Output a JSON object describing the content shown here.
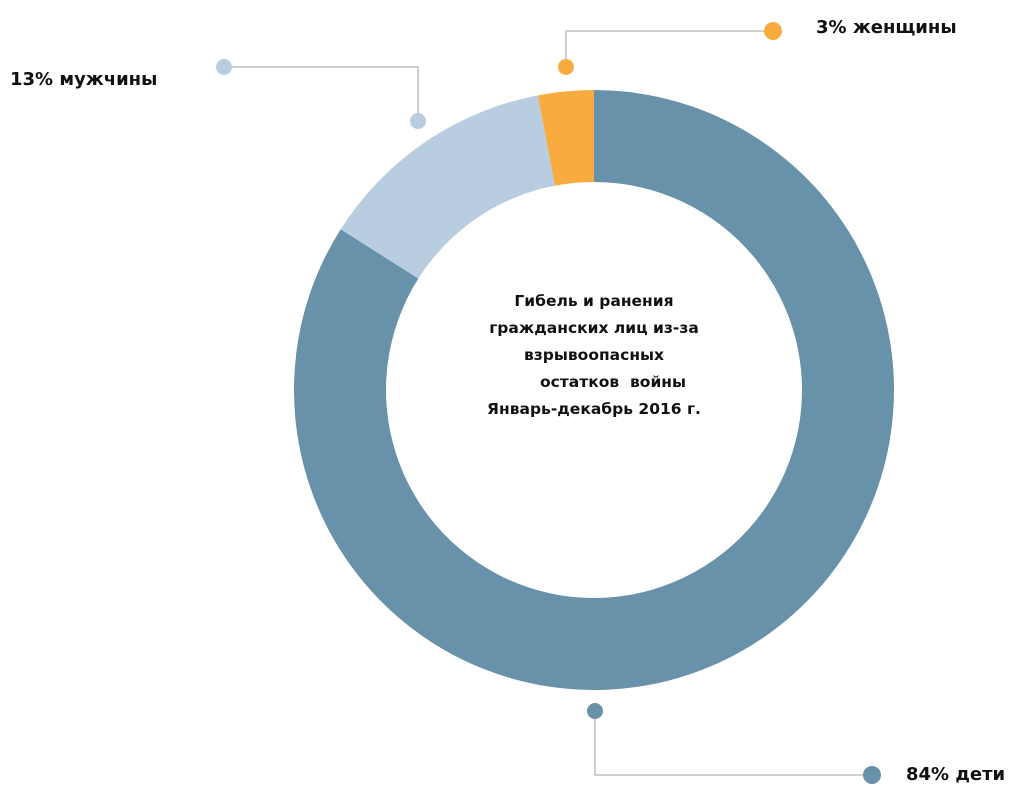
{
  "chart_data": {
    "type": "pie",
    "title_lines": [
      "Гибель и ранения",
      "гражданских лиц из-за",
      "взрывоопасных",
      "остатков  войны",
      "Январь-декабрь 2016 г."
    ],
    "slices": [
      {
        "name": "дети",
        "label": "84% дети",
        "value": 84,
        "color": "#6891aa"
      },
      {
        "name": "женщины",
        "label": "3% женщины",
        "value": 3,
        "color": "#f8ac3f"
      },
      {
        "name": "мужчины",
        "label": "13% мужчины",
        "value": 13,
        "color": "#b8ceE0"
      }
    ],
    "legend": "none",
    "grid": false
  }
}
